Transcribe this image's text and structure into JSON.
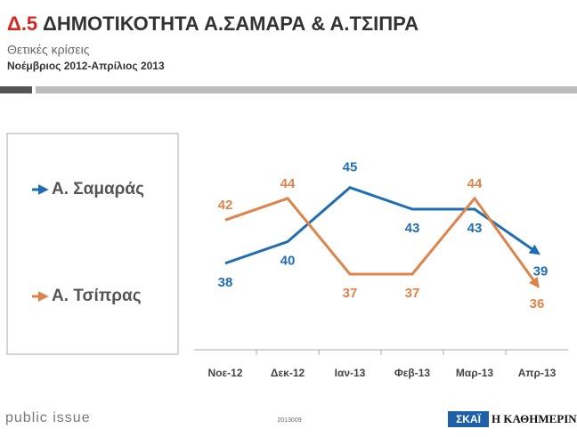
{
  "header": {
    "number": "Δ.5",
    "title": "ΔΗΜΟΤΙΚΟΤΗΤΑ Α.ΣΑΜΑΡΑ & Α.ΤΣΙΠΡΑ",
    "subtitle": "Θετικές κρίσεις",
    "period": "Νοέμβριος 2012-Απρίλιος 2013"
  },
  "chart_data": {
    "type": "line",
    "categories": [
      "Νοε-12",
      "Δεκ-12",
      "Ιαν-13",
      "Φεβ-13",
      "Μαρ-13",
      "Απρ-13"
    ],
    "series": [
      {
        "name": "Α. Σαμαράς",
        "color": "#1f6db5",
        "values": [
          38,
          40,
          45,
          43,
          43,
          39
        ]
      },
      {
        "name": "Α. Τσίπρας",
        "color": "#e0834a",
        "values": [
          42,
          44,
          37,
          37,
          44,
          36
        ]
      }
    ],
    "ylim": [
      30,
      50
    ]
  },
  "footer": {
    "brand": "public issue",
    "code": "2013009",
    "logo1": "ΣΚΑΪ",
    "logo2": "Η ΚΑΘΗΜΕΡΙΝΗ"
  }
}
